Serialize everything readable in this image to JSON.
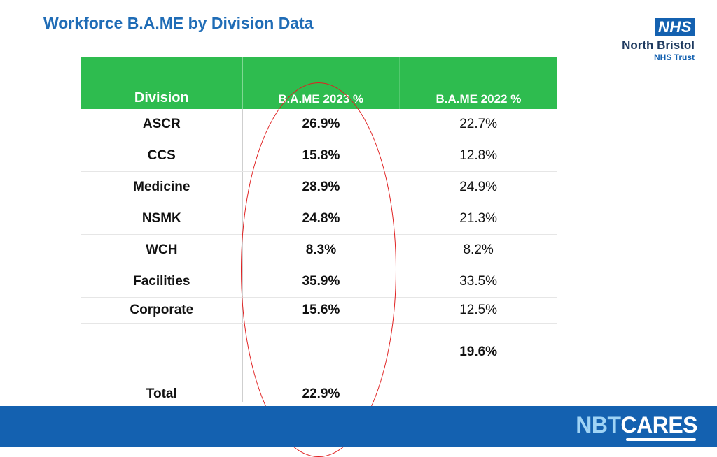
{
  "title": "Workforce B.A.ME by Division Data",
  "logo": {
    "nhs": "NHS",
    "org": "North Bristol",
    "trust": "NHS Trust"
  },
  "table": {
    "headers": {
      "division": "Division",
      "y2023": "B.A.ME  2023 %",
      "y2022": "B.A.ME 2022 %"
    },
    "rows": [
      {
        "division": "ASCR",
        "y2023": "26.9%",
        "y2022": "22.7%"
      },
      {
        "division": "CCS",
        "y2023": "15.8%",
        "y2022": "12.8%"
      },
      {
        "division": "Medicine",
        "y2023": "28.9%",
        "y2022": "24.9%"
      },
      {
        "division": "NSMK",
        "y2023": "24.8%",
        "y2022": "21.3%"
      },
      {
        "division": "WCH",
        "y2023": "8.3%",
        "y2022": "8.2%"
      },
      {
        "division": "Facilities",
        "y2023": "35.9%",
        "y2022": "33.5%"
      },
      {
        "division": "Corporate",
        "y2023": "15.6%",
        "y2022": "12.5%"
      }
    ],
    "total": {
      "division": "Total",
      "y2023": "22.9%",
      "y2022": "19.6%"
    }
  },
  "footer": {
    "brand_prefix": "NBT",
    "brand_suffix": "CARES"
  },
  "colors": {
    "header_green": "#2ebc4f",
    "title_blue": "#1f6cb6",
    "footer_blue": "#1461b0",
    "highlight_red": "#e02020"
  }
}
